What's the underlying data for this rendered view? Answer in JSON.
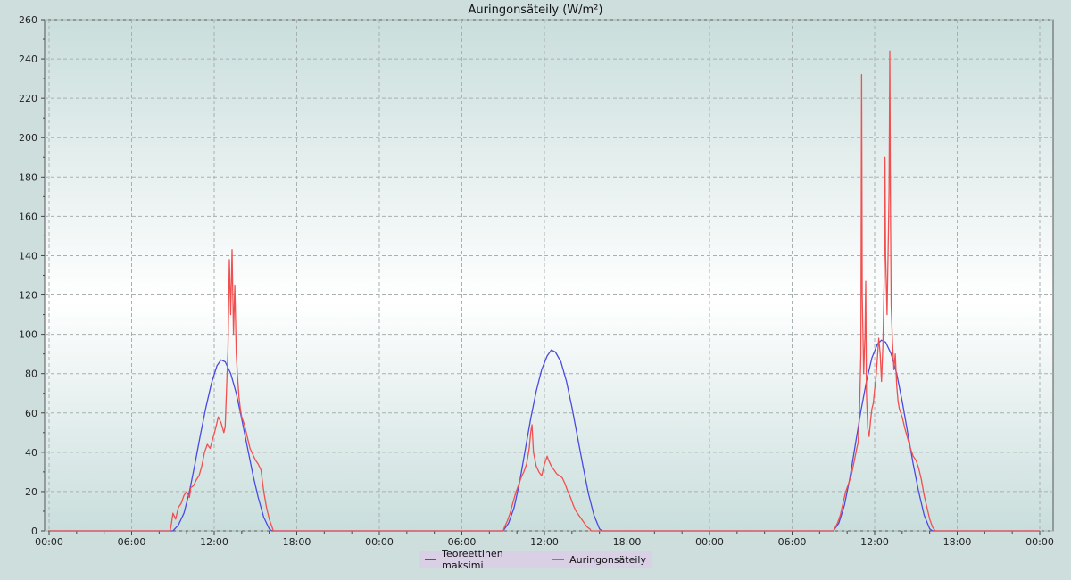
{
  "chart_data": {
    "type": "line",
    "title": "Auringonsäteily (W/m²)",
    "xlabel": "",
    "ylabel": "",
    "x_unit": "hours",
    "x_range": [
      0,
      72
    ],
    "x_ticks": [
      {
        "x": 0,
        "label": "00:00"
      },
      {
        "x": 6,
        "label": "06:00"
      },
      {
        "x": 12,
        "label": "12:00"
      },
      {
        "x": 18,
        "label": "18:00"
      },
      {
        "x": 24,
        "label": "00:00"
      },
      {
        "x": 30,
        "label": "06:00"
      },
      {
        "x": 36,
        "label": "12:00"
      },
      {
        "x": 42,
        "label": "18:00"
      },
      {
        "x": 48,
        "label": "00:00"
      },
      {
        "x": 54,
        "label": "06:00"
      },
      {
        "x": 60,
        "label": "12:00"
      },
      {
        "x": 66,
        "label": "18:00"
      },
      {
        "x": 72,
        "label": "00:00"
      }
    ],
    "ylim": [
      0,
      260
    ],
    "y_ticks": [
      0,
      20,
      40,
      60,
      80,
      100,
      120,
      140,
      160,
      180,
      200,
      220,
      240,
      260
    ],
    "grid": true,
    "legend_position": "bottom-center",
    "series": [
      {
        "name": "Teoreettinen maksimi",
        "color": "#4a4ae0",
        "points": [
          [
            0,
            0
          ],
          [
            9.0,
            0
          ],
          [
            9.4,
            3
          ],
          [
            9.8,
            9
          ],
          [
            10.2,
            20
          ],
          [
            10.6,
            34
          ],
          [
            11.0,
            49
          ],
          [
            11.4,
            63
          ],
          [
            11.8,
            75
          ],
          [
            12.2,
            84
          ],
          [
            12.5,
            87
          ],
          [
            12.8,
            86
          ],
          [
            13.2,
            80
          ],
          [
            13.6,
            70
          ],
          [
            14.0,
            57
          ],
          [
            14.4,
            43
          ],
          [
            14.8,
            29
          ],
          [
            15.2,
            17
          ],
          [
            15.6,
            7
          ],
          [
            16.0,
            1
          ],
          [
            16.2,
            0
          ],
          [
            33.0,
            0
          ],
          [
            33.4,
            4
          ],
          [
            33.8,
            12
          ],
          [
            34.2,
            25
          ],
          [
            34.6,
            41
          ],
          [
            35.0,
            57
          ],
          [
            35.4,
            71
          ],
          [
            35.8,
            82
          ],
          [
            36.2,
            89
          ],
          [
            36.5,
            92
          ],
          [
            36.8,
            91
          ],
          [
            37.2,
            86
          ],
          [
            37.6,
            76
          ],
          [
            38.0,
            63
          ],
          [
            38.4,
            48
          ],
          [
            38.8,
            33
          ],
          [
            39.2,
            19
          ],
          [
            39.6,
            8
          ],
          [
            40.0,
            1
          ],
          [
            40.2,
            0
          ],
          [
            57.0,
            0
          ],
          [
            57.4,
            4
          ],
          [
            57.8,
            13
          ],
          [
            58.2,
            27
          ],
          [
            58.6,
            44
          ],
          [
            59.0,
            61
          ],
          [
            59.4,
            76
          ],
          [
            59.8,
            88
          ],
          [
            60.2,
            95
          ],
          [
            60.5,
            97
          ],
          [
            60.8,
            96
          ],
          [
            61.2,
            90
          ],
          [
            61.6,
            80
          ],
          [
            62.0,
            66
          ],
          [
            62.4,
            50
          ],
          [
            62.8,
            34
          ],
          [
            63.2,
            20
          ],
          [
            63.6,
            8
          ],
          [
            64.0,
            1
          ],
          [
            64.2,
            0
          ],
          [
            72,
            0
          ]
        ]
      },
      {
        "name": "Auringonsäteily",
        "color": "#f05050",
        "points": [
          [
            0,
            0
          ],
          [
            8.8,
            0
          ],
          [
            8.9,
            4
          ],
          [
            9.0,
            9
          ],
          [
            9.2,
            6
          ],
          [
            9.4,
            12
          ],
          [
            9.6,
            14
          ],
          [
            9.8,
            18
          ],
          [
            10.0,
            20
          ],
          [
            10.2,
            17
          ],
          [
            10.3,
            22
          ],
          [
            10.5,
            23
          ],
          [
            10.7,
            26
          ],
          [
            10.9,
            28
          ],
          [
            11.1,
            33
          ],
          [
            11.3,
            40
          ],
          [
            11.5,
            44
          ],
          [
            11.7,
            42
          ],
          [
            11.9,
            47
          ],
          [
            12.1,
            52
          ],
          [
            12.3,
            58
          ],
          [
            12.5,
            55
          ],
          [
            12.7,
            50
          ],
          [
            12.8,
            53
          ],
          [
            13.0,
            92
          ],
          [
            13.1,
            138
          ],
          [
            13.2,
            110
          ],
          [
            13.3,
            143
          ],
          [
            13.4,
            100
          ],
          [
            13.5,
            125
          ],
          [
            13.6,
            90
          ],
          [
            13.7,
            78
          ],
          [
            13.8,
            68
          ],
          [
            13.9,
            62
          ],
          [
            14.0,
            58
          ],
          [
            14.2,
            54
          ],
          [
            14.4,
            48
          ],
          [
            14.6,
            42
          ],
          [
            14.8,
            39
          ],
          [
            15.0,
            36
          ],
          [
            15.2,
            34
          ],
          [
            15.4,
            31
          ],
          [
            15.6,
            20
          ],
          [
            15.8,
            12
          ],
          [
            16.0,
            6
          ],
          [
            16.2,
            2
          ],
          [
            16.3,
            0
          ],
          [
            33.0,
            0
          ],
          [
            33.1,
            2
          ],
          [
            33.3,
            5
          ],
          [
            33.5,
            9
          ],
          [
            33.7,
            14
          ],
          [
            33.9,
            19
          ],
          [
            34.1,
            23
          ],
          [
            34.3,
            27
          ],
          [
            34.5,
            30
          ],
          [
            34.7,
            34
          ],
          [
            34.9,
            42
          ],
          [
            35.0,
            50
          ],
          [
            35.1,
            54
          ],
          [
            35.2,
            40
          ],
          [
            35.4,
            33
          ],
          [
            35.6,
            30
          ],
          [
            35.8,
            28
          ],
          [
            36.0,
            34
          ],
          [
            36.2,
            38
          ],
          [
            36.3,
            36
          ],
          [
            36.5,
            33
          ],
          [
            36.7,
            31
          ],
          [
            36.9,
            29
          ],
          [
            37.1,
            28
          ],
          [
            37.3,
            27
          ],
          [
            37.5,
            24
          ],
          [
            37.7,
            20
          ],
          [
            37.9,
            17
          ],
          [
            38.1,
            13
          ],
          [
            38.3,
            10
          ],
          [
            38.5,
            8
          ],
          [
            38.7,
            6
          ],
          [
            38.9,
            4
          ],
          [
            39.1,
            2
          ],
          [
            39.3,
            1
          ],
          [
            39.4,
            0
          ],
          [
            57.0,
            0
          ],
          [
            57.3,
            4
          ],
          [
            57.5,
            8
          ],
          [
            57.7,
            14
          ],
          [
            57.9,
            20
          ],
          [
            58.1,
            24
          ],
          [
            58.3,
            28
          ],
          [
            58.5,
            35
          ],
          [
            58.7,
            42
          ],
          [
            58.8,
            45
          ],
          [
            58.9,
            60
          ],
          [
            59.0,
            90
          ],
          [
            59.05,
            232
          ],
          [
            59.1,
            120
          ],
          [
            59.2,
            80
          ],
          [
            59.3,
            100
          ],
          [
            59.35,
            127
          ],
          [
            59.4,
            70
          ],
          [
            59.5,
            52
          ],
          [
            59.6,
            48
          ],
          [
            59.7,
            56
          ],
          [
            59.8,
            62
          ],
          [
            59.9,
            65
          ],
          [
            60.0,
            72
          ],
          [
            60.1,
            78
          ],
          [
            60.2,
            88
          ],
          [
            60.3,
            98
          ],
          [
            60.4,
            90
          ],
          [
            60.5,
            76
          ],
          [
            60.6,
            95
          ],
          [
            60.7,
            130
          ],
          [
            60.75,
            190
          ],
          [
            60.8,
            140
          ],
          [
            60.9,
            110
          ],
          [
            61.0,
            150
          ],
          [
            61.05,
            174
          ],
          [
            61.1,
            244
          ],
          [
            61.15,
            168
          ],
          [
            61.2,
            115
          ],
          [
            61.3,
            96
          ],
          [
            61.4,
            82
          ],
          [
            61.5,
            90
          ],
          [
            61.6,
            74
          ],
          [
            61.7,
            66
          ],
          [
            61.8,
            62
          ],
          [
            62.0,
            58
          ],
          [
            62.2,
            52
          ],
          [
            62.4,
            47
          ],
          [
            62.6,
            42
          ],
          [
            62.8,
            38
          ],
          [
            63.0,
            36
          ],
          [
            63.2,
            32
          ],
          [
            63.4,
            26
          ],
          [
            63.6,
            18
          ],
          [
            63.8,
            12
          ],
          [
            64.0,
            6
          ],
          [
            64.2,
            2
          ],
          [
            64.4,
            0
          ],
          [
            72,
            0
          ]
        ]
      }
    ]
  }
}
